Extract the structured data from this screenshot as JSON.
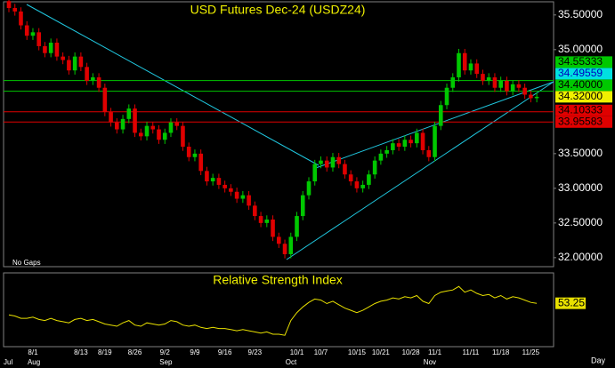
{
  "chart_data": [
    {
      "type": "candlestick",
      "title": "USD Futures Dec-24 (USDZ24)",
      "note": "No Gaps",
      "x_label": "Day",
      "categories": [
        null,
        null,
        null,
        null,
        "8/1",
        null,
        null,
        null,
        null,
        null,
        null,
        null,
        "8/13",
        null,
        null,
        null,
        "8/19",
        null,
        null,
        null,
        null,
        "8/26",
        null,
        null,
        null,
        null,
        "9/2",
        null,
        null,
        null,
        null,
        "9/9",
        null,
        null,
        null,
        null,
        "9/16",
        null,
        null,
        null,
        null,
        "9/23",
        null,
        null,
        null,
        null,
        null,
        null,
        "10/1",
        null,
        null,
        null,
        "10/7",
        null,
        null,
        null,
        null,
        null,
        "10/15",
        null,
        null,
        null,
        "10/21",
        null,
        null,
        null,
        null,
        "10/28",
        null,
        null,
        null,
        "11/1",
        null,
        null,
        null,
        null,
        null,
        "11/11",
        null,
        null,
        null,
        null,
        "11/18",
        null,
        null,
        null,
        null,
        "11/25",
        null,
        null
      ],
      "months": [
        "Jul",
        null,
        null,
        null,
        "Aug",
        null,
        null,
        null,
        null,
        null,
        null,
        null,
        null,
        null,
        null,
        null,
        null,
        null,
        null,
        null,
        null,
        null,
        null,
        null,
        null,
        null,
        "Sep",
        null,
        null,
        null,
        null,
        null,
        null,
        null,
        null,
        null,
        null,
        null,
        null,
        null,
        null,
        null,
        null,
        null,
        null,
        null,
        null,
        "Oct",
        null,
        null,
        null,
        null,
        null,
        null,
        null,
        null,
        null,
        null,
        null,
        null,
        null,
        null,
        null,
        null,
        null,
        null,
        null,
        null,
        null,
        null,
        "Nov",
        null,
        null,
        null,
        null,
        null,
        null,
        null,
        null,
        null,
        null,
        null,
        null,
        null,
        null,
        null,
        null,
        null,
        null
      ],
      "open": [
        35.7,
        35.6,
        35.55,
        35.35,
        35.2,
        35.25,
        35.05,
        34.95,
        35.1,
        34.9,
        34.85,
        34.7,
        34.9,
        34.75,
        34.55,
        34.6,
        34.45,
        34.1,
        33.95,
        33.85,
        34.0,
        34.15,
        33.8,
        33.75,
        33.9,
        33.85,
        33.7,
        33.8,
        33.95,
        33.9,
        33.6,
        33.45,
        33.5,
        33.25,
        33.1,
        33.15,
        33.05,
        33.0,
        32.95,
        32.85,
        32.9,
        32.75,
        32.6,
        32.5,
        32.55,
        32.3,
        32.2,
        32.05,
        32.3,
        32.6,
        32.9,
        33.1,
        33.35,
        33.4,
        33.3,
        33.45,
        33.35,
        33.2,
        33.1,
        33.0,
        33.05,
        33.2,
        33.4,
        33.5,
        33.55,
        33.65,
        33.6,
        33.7,
        33.65,
        33.8,
        33.55,
        33.45,
        33.9,
        34.2,
        34.45,
        34.6,
        34.95,
        34.7,
        34.8,
        34.65,
        34.55,
        34.6,
        34.45,
        34.55,
        34.4,
        34.5,
        34.45,
        34.35,
        34.3
      ],
      "high": [
        35.76,
        35.66,
        35.61,
        35.41,
        35.31,
        35.31,
        35.11,
        35.16,
        35.16,
        34.96,
        34.91,
        34.96,
        34.96,
        34.81,
        34.66,
        34.66,
        34.51,
        34.16,
        34.01,
        34.06,
        34.21,
        34.21,
        33.86,
        33.96,
        33.96,
        33.91,
        33.86,
        34.01,
        34.01,
        33.96,
        33.66,
        33.56,
        33.56,
        33.31,
        33.21,
        33.21,
        33.11,
        33.06,
        33.01,
        32.96,
        32.96,
        32.81,
        32.66,
        32.61,
        32.61,
        32.36,
        32.26,
        32.36,
        32.66,
        32.96,
        33.16,
        33.41,
        33.46,
        33.46,
        33.51,
        33.51,
        33.41,
        33.26,
        33.16,
        33.11,
        33.26,
        33.46,
        33.56,
        33.61,
        33.71,
        33.71,
        33.76,
        33.76,
        33.86,
        33.86,
        33.61,
        33.96,
        34.26,
        34.51,
        34.66,
        35.01,
        35.01,
        34.86,
        34.86,
        34.71,
        34.66,
        34.66,
        34.61,
        34.61,
        34.56,
        34.56,
        34.51,
        34.41,
        34.38
      ],
      "low": [
        35.54,
        35.49,
        35.29,
        35.14,
        35.14,
        34.99,
        34.89,
        34.89,
        34.84,
        34.79,
        34.64,
        34.64,
        34.69,
        34.49,
        34.49,
        34.39,
        34.04,
        33.89,
        33.79,
        33.79,
        33.94,
        33.74,
        33.69,
        33.69,
        33.79,
        33.64,
        33.64,
        33.74,
        33.84,
        33.54,
        33.39,
        33.39,
        33.19,
        33.04,
        33.04,
        32.99,
        32.94,
        32.89,
        32.79,
        32.79,
        32.69,
        32.54,
        32.44,
        32.44,
        32.24,
        32.14,
        31.99,
        31.99,
        32.24,
        32.54,
        32.84,
        33.04,
        33.29,
        33.24,
        33.24,
        33.29,
        33.14,
        33.04,
        32.94,
        32.94,
        32.99,
        33.14,
        33.34,
        33.44,
        33.49,
        33.54,
        33.54,
        33.59,
        33.59,
        33.49,
        33.39,
        33.39,
        33.84,
        34.14,
        34.39,
        34.54,
        34.64,
        34.64,
        34.59,
        34.49,
        34.49,
        34.39,
        34.39,
        34.34,
        34.34,
        34.39,
        34.29,
        34.24,
        34.24
      ],
      "close": [
        35.6,
        35.55,
        35.35,
        35.2,
        35.25,
        35.05,
        34.95,
        35.1,
        34.9,
        34.85,
        34.7,
        34.9,
        34.75,
        34.55,
        34.6,
        34.45,
        34.1,
        33.95,
        33.85,
        34.0,
        34.15,
        33.8,
        33.75,
        33.9,
        33.85,
        33.7,
        33.8,
        33.95,
        33.9,
        33.6,
        33.45,
        33.5,
        33.25,
        33.1,
        33.15,
        33.05,
        33.0,
        32.95,
        32.85,
        32.9,
        32.75,
        32.6,
        32.5,
        32.55,
        32.3,
        32.2,
        32.05,
        32.3,
        32.6,
        32.9,
        33.1,
        33.35,
        33.4,
        33.3,
        33.45,
        33.35,
        33.2,
        33.1,
        33.0,
        33.05,
        33.2,
        33.4,
        33.5,
        33.55,
        33.65,
        33.6,
        33.7,
        33.65,
        33.8,
        33.55,
        33.45,
        33.9,
        34.2,
        34.45,
        34.6,
        34.95,
        34.7,
        34.8,
        34.65,
        34.55,
        34.6,
        34.45,
        34.55,
        34.4,
        34.5,
        34.45,
        34.35,
        34.3,
        34.32
      ],
      "up_color": "#00c800",
      "down_color": "#e00000",
      "ylim": [
        31.87,
        35.69
      ],
      "yticks": [
        {
          "value": 32,
          "label": "32.00000"
        },
        {
          "value": 32.5,
          "label": "32.50000"
        },
        {
          "value": 33,
          "label": "33.00000"
        },
        {
          "value": 33.5,
          "label": "33.50000"
        },
        {
          "value": 35,
          "label": "35.00000"
        },
        {
          "value": 35.5,
          "label": "35.50000"
        }
      ],
      "levels": [
        {
          "value": 34.55333,
          "label": "34.55333",
          "color": "#00c800"
        },
        {
          "value": 34.49559,
          "label": "34.49559",
          "color": "#00e0e0"
        },
        {
          "value": 34.4,
          "label": "34.40000",
          "color": "#00c800"
        },
        {
          "value": 34.32,
          "label": "34.32000",
          "color": "#f0f000"
        },
        {
          "value": 34.10333,
          "label": "34.10333",
          "color": "#e00000"
        },
        {
          "value": 33.95583,
          "label": "33.95583",
          "color": "#e00000"
        }
      ]
    },
    {
      "type": "line",
      "title": "Relative Strength Index",
      "color": "#e8e000",
      "ylim": [
        15,
        80
      ],
      "values": [
        43,
        42,
        40,
        40,
        41,
        39,
        38,
        40,
        38,
        37,
        36,
        39,
        40,
        38,
        39,
        37,
        35,
        34,
        33,
        36,
        38,
        34,
        33,
        36,
        35,
        34,
        35,
        38,
        37,
        34,
        33,
        34,
        32,
        31,
        32,
        31,
        31,
        30,
        29,
        30,
        29,
        28,
        27,
        28,
        26,
        26,
        25,
        38,
        45,
        50,
        54,
        57,
        56,
        53,
        55,
        52,
        49,
        47,
        45,
        47,
        50,
        53,
        55,
        56,
        58,
        57,
        59,
        58,
        60,
        55,
        53,
        60,
        63,
        64,
        65,
        68,
        63,
        65,
        62,
        60,
        61,
        58,
        60,
        57,
        59,
        58,
        56,
        54,
        53.25
      ]
    }
  ]
}
